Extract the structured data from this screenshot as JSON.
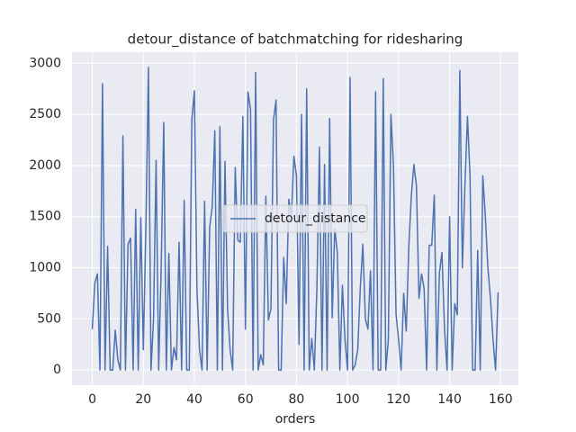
{
  "chart_data": {
    "type": "line",
    "title": "detour_distance of batchmatching for ridesharing",
    "xlabel": "orders",
    "x": [
      0,
      1,
      2,
      3,
      4,
      5,
      6,
      7,
      8,
      9,
      10,
      11,
      12,
      13,
      14,
      15,
      16,
      17,
      18,
      19,
      20,
      21,
      22,
      23,
      24,
      25,
      26,
      27,
      28,
      29,
      30,
      31,
      32,
      33,
      34,
      35,
      36,
      37,
      38,
      39,
      40,
      41,
      42,
      43,
      44,
      45,
      46,
      47,
      48,
      49,
      50,
      51,
      52,
      53,
      54,
      55,
      56,
      57,
      58,
      59,
      60,
      61,
      62,
      63,
      64,
      65,
      66,
      67,
      68,
      69,
      70,
      71,
      72,
      73,
      74,
      75,
      76,
      77,
      78,
      79,
      80,
      81,
      82,
      83,
      84,
      85,
      86,
      87,
      88,
      89,
      90,
      91,
      92,
      93,
      94,
      95,
      96,
      97,
      98,
      99,
      100,
      101,
      102,
      103,
      104,
      105,
      106,
      107,
      108,
      109,
      110,
      111,
      112,
      113,
      114,
      115,
      116,
      117,
      118,
      119,
      120,
      121,
      122,
      123,
      124,
      125,
      126,
      127,
      128,
      129,
      130,
      131,
      132,
      133,
      134,
      135,
      136,
      137,
      138,
      139,
      140,
      141,
      142,
      143,
      144,
      145,
      146,
      147,
      148,
      149,
      150,
      151,
      152,
      153,
      154,
      155,
      156,
      157,
      158,
      159
    ],
    "series": [
      {
        "name": "detour_distance",
        "color": "#4c72b0",
        "values": [
          400,
          850,
          940,
          0,
          2800,
          0,
          1210,
          0,
          0,
          390,
          100,
          0,
          2290,
          0,
          1230,
          1290,
          0,
          1570,
          0,
          1490,
          200,
          1400,
          2960,
          0,
          500,
          2050,
          0,
          1000,
          2420,
          0,
          1140,
          0,
          220,
          100,
          1250,
          0,
          1660,
          0,
          0,
          2450,
          2730,
          800,
          200,
          0,
          1650,
          0,
          1400,
          1600,
          2340,
          0,
          2380,
          0,
          2040,
          600,
          200,
          0,
          1980,
          1270,
          1250,
          2480,
          400,
          2720,
          2550,
          0,
          2910,
          0,
          150,
          50,
          1700,
          490,
          600,
          2450,
          2640,
          0,
          0,
          1100,
          650,
          1670,
          1500,
          2090,
          1900,
          250,
          2500,
          0,
          2750,
          0,
          310,
          0,
          800,
          2180,
          0,
          2010,
          0,
          2460,
          510,
          1380,
          1150,
          0,
          830,
          300,
          0,
          2860,
          0,
          50,
          200,
          800,
          1230,
          500,
          400,
          970,
          0,
          2720,
          0,
          0,
          2850,
          0,
          300,
          2500,
          2000,
          550,
          300,
          0,
          750,
          380,
          1200,
          1700,
          2010,
          1800,
          700,
          940,
          800,
          0,
          1220,
          1220,
          1710,
          0,
          950,
          1150,
          400,
          0,
          1500,
          0,
          650,
          540,
          2930,
          1000,
          1800,
          2480,
          1900,
          0,
          0,
          1170,
          0,
          1900,
          1500,
          1000,
          700,
          300,
          0,
          760
        ]
      }
    ],
    "xlim": [
      -7.95,
      166.95
    ],
    "ylim": [
      -148,
      3108
    ],
    "xticks": [
      0,
      20,
      40,
      60,
      80,
      100,
      120,
      140,
      160
    ],
    "yticks": [
      0,
      500,
      1000,
      1500,
      2000,
      2500,
      3000
    ],
    "grid": true,
    "legend": "center"
  }
}
